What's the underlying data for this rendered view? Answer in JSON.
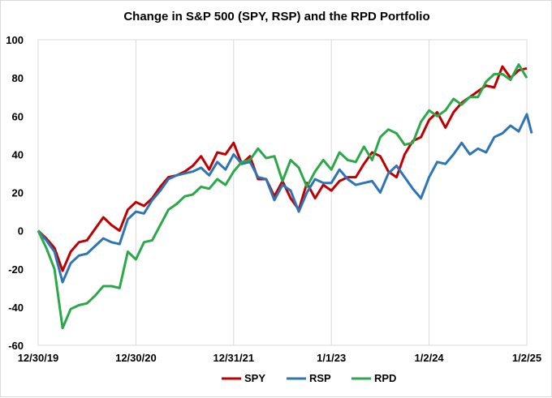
{
  "chart_data": {
    "type": "line",
    "title": "Change in S&P 500 (SPY, RSP) and the RPD Portfolio",
    "xlabel": "",
    "ylabel": "",
    "ylim": [
      -60,
      100
    ],
    "yticks": [
      -60,
      -40,
      -20,
      0,
      20,
      40,
      60,
      80,
      100
    ],
    "xticks": [
      {
        "label": "12/30/19",
        "x": 0
      },
      {
        "label": "12/30/20",
        "x": 12
      },
      {
        "label": "12/31/21",
        "x": 24
      },
      {
        "label": "1/1/23",
        "x": 36
      },
      {
        "label": "1/2/24",
        "x": 48
      },
      {
        "label": "1/2/25",
        "x": 60
      }
    ],
    "grid": "vertical",
    "legend_position": "bottom",
    "series": [
      {
        "name": "SPY",
        "color": "#C00000",
        "values": [
          0,
          -4,
          -9,
          -21,
          -11,
          -6,
          -5,
          1,
          7,
          3,
          0,
          11,
          15,
          13,
          17,
          23,
          28,
          29,
          31,
          34,
          39,
          32,
          41,
          40,
          46,
          35,
          39,
          27,
          27,
          18,
          26,
          17,
          11,
          25,
          17,
          24,
          21,
          26,
          28,
          28,
          35,
          41,
          39,
          31,
          28,
          40,
          47,
          49,
          58,
          62,
          54,
          62,
          67,
          70,
          73,
          76,
          75,
          86,
          80,
          84,
          85
        ],
        "x": [
          0,
          1,
          2,
          3,
          4,
          5,
          6,
          7,
          8,
          9,
          10,
          11,
          12,
          13,
          14,
          15,
          16,
          17,
          18,
          19,
          20,
          21,
          22,
          23,
          24,
          25,
          26,
          27,
          28,
          29,
          30,
          31,
          32,
          33,
          34,
          35,
          36,
          37,
          38,
          39,
          40,
          41,
          42,
          43,
          44,
          45,
          46,
          47,
          48,
          49,
          50,
          51,
          52,
          53,
          54,
          55,
          56,
          57,
          58,
          59,
          60
        ]
      },
      {
        "name": "RSP",
        "color": "#2E75B6",
        "values": [
          0,
          -5,
          -11,
          -27,
          -17,
          -13,
          -12,
          -8,
          -4,
          -6,
          -7,
          6,
          10,
          9,
          16,
          21,
          27,
          29,
          30,
          31,
          33,
          29,
          36,
          32,
          40,
          35,
          36,
          28,
          27,
          16,
          24,
          21,
          10,
          20,
          27,
          25,
          25,
          32,
          27,
          24,
          25,
          26,
          20,
          30,
          34,
          28,
          22,
          17,
          28,
          36,
          35,
          40,
          46,
          40,
          43,
          41,
          49,
          51,
          55,
          52,
          61,
          51
        ],
        "x": [
          0,
          1,
          2,
          3,
          4,
          5,
          6,
          7,
          8,
          9,
          10,
          11,
          12,
          13,
          14,
          15,
          16,
          17,
          18,
          19,
          20,
          21,
          22,
          23,
          24,
          25,
          26,
          27,
          28,
          29,
          30,
          31,
          32,
          33,
          34,
          35,
          36,
          37,
          38,
          39,
          40,
          41,
          42,
          43,
          44,
          45,
          46,
          47,
          48,
          49,
          50,
          51,
          52,
          53,
          54,
          55,
          56,
          57,
          58,
          59,
          60,
          60.6
        ]
      },
      {
        "name": "RPD",
        "color": "#2BA84A",
        "values": [
          0,
          -9,
          -20,
          -51,
          -41,
          -39,
          -38,
          -34,
          -29,
          -29,
          -30,
          -11,
          -15,
          -6,
          -5,
          3,
          11,
          14,
          18,
          19,
          23,
          22,
          27,
          24,
          31,
          36,
          37,
          43,
          38,
          39,
          26,
          37,
          33,
          23,
          31,
          37,
          32,
          41,
          37,
          36,
          44,
          37,
          49,
          53,
          51,
          45,
          46,
          57,
          63,
          60,
          63,
          69,
          66,
          70,
          70,
          78,
          82,
          82,
          79,
          87,
          80
        ],
        "x": [
          0,
          1,
          2,
          3,
          4,
          5,
          6,
          7,
          8,
          9,
          10,
          11,
          12,
          13,
          14,
          15,
          16,
          17,
          18,
          19,
          20,
          21,
          22,
          23,
          24,
          25,
          26,
          27,
          28,
          29,
          30,
          31,
          32,
          33,
          34,
          35,
          36,
          37,
          38,
          39,
          40,
          41,
          42,
          43,
          44,
          45,
          46,
          47,
          48,
          49,
          50,
          51,
          52,
          53,
          54,
          55,
          56,
          57,
          58,
          59,
          60
        ]
      }
    ]
  }
}
